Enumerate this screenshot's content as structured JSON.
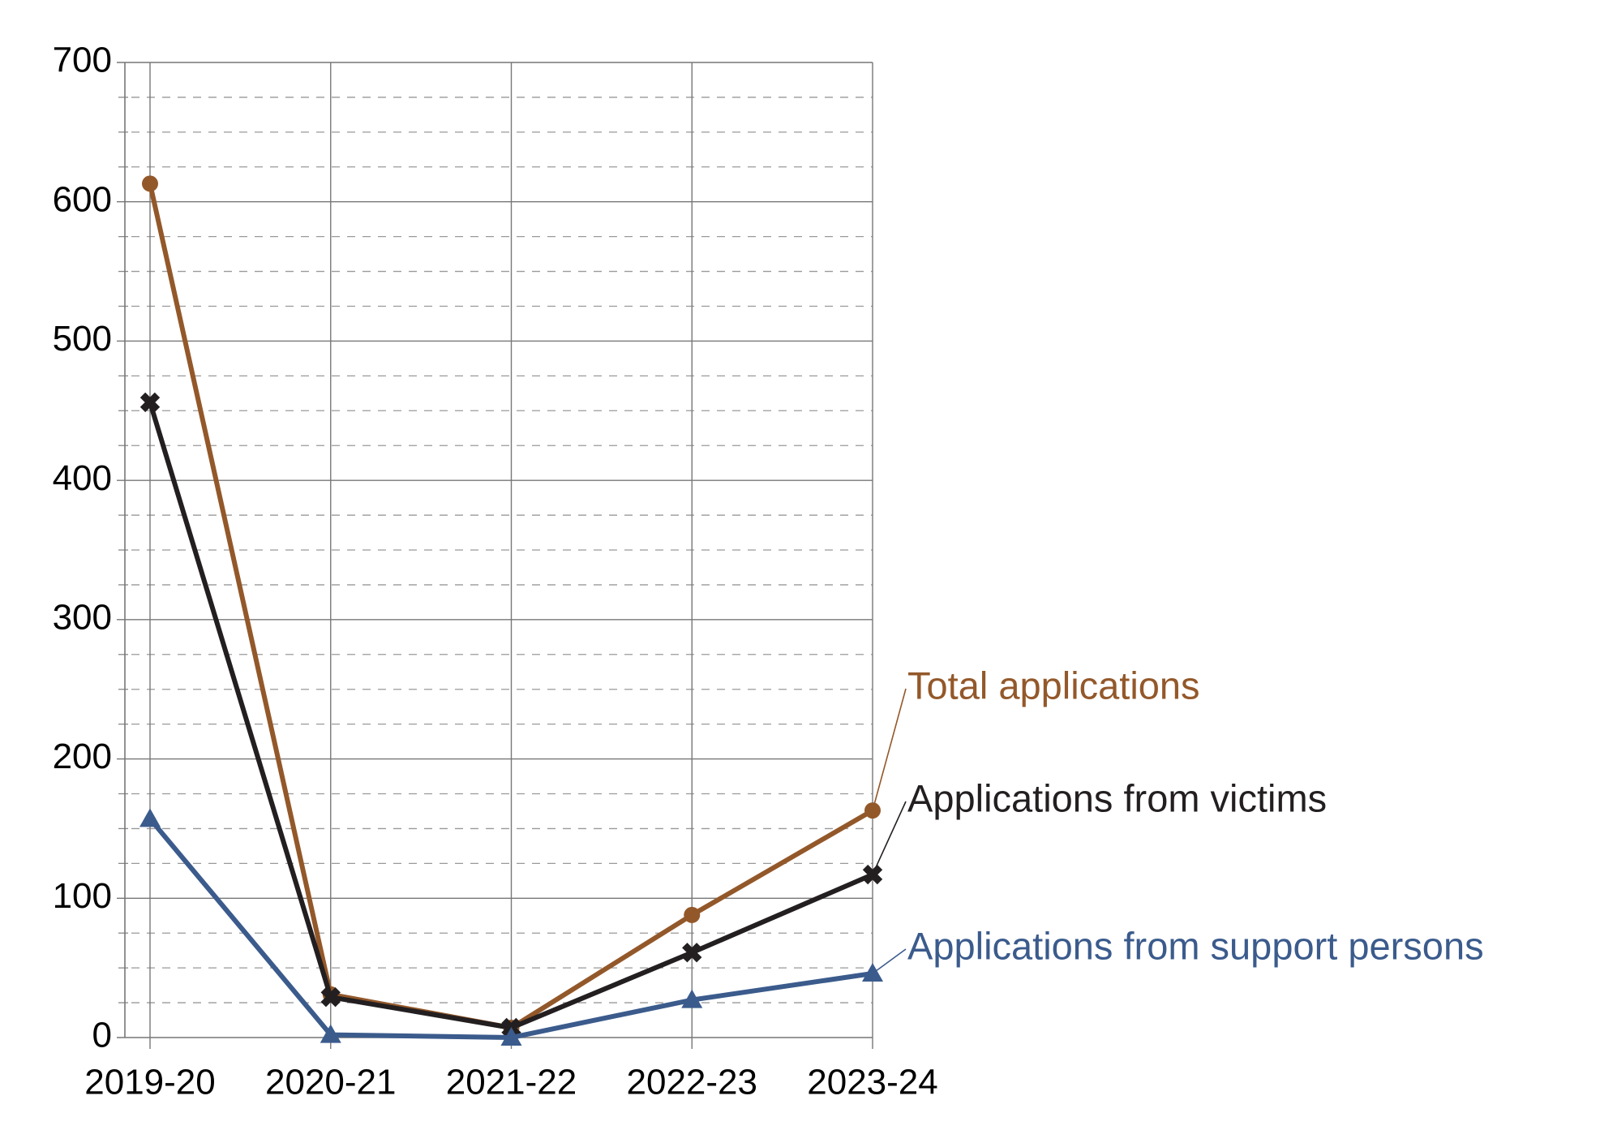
{
  "chart_data": {
    "type": "line",
    "categories": [
      "2019-20",
      "2020-21",
      "2021-22",
      "2022-23",
      "2023-24"
    ],
    "series": [
      {
        "name": "Total applications",
        "color": "#93582a",
        "marker": "circle",
        "values": [
          613,
          31,
          7,
          88,
          163
        ]
      },
      {
        "name": "Applications from victims",
        "color": "#231f20",
        "marker": "cross",
        "values": [
          456,
          29,
          7,
          61,
          117
        ]
      },
      {
        "name": "Applications from support persons",
        "color": "#3b5b8c",
        "marker": "triangle",
        "values": [
          157,
          2,
          0,
          27,
          46
        ]
      }
    ],
    "ylim": [
      0,
      700
    ],
    "yticks": [
      0,
      100,
      200,
      300,
      400,
      500,
      600,
      700
    ],
    "grid": true
  }
}
